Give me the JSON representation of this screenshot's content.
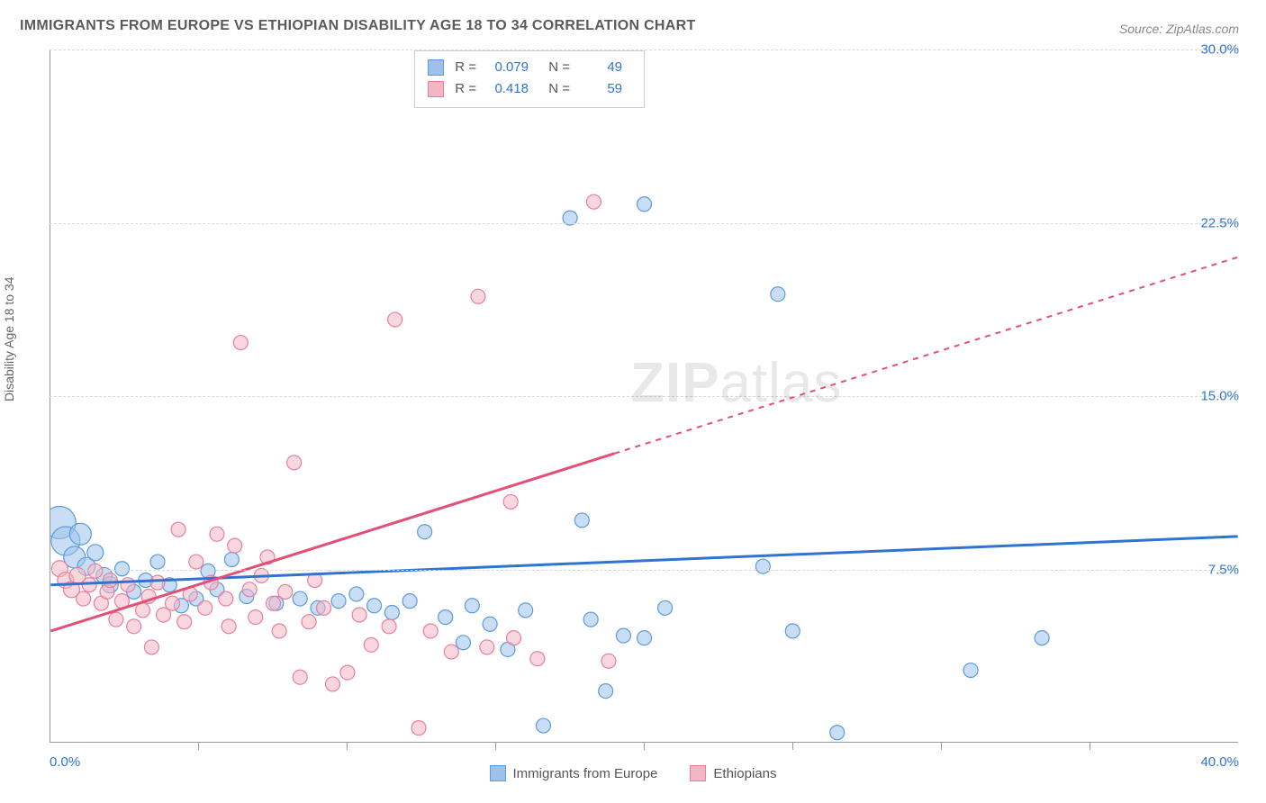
{
  "title": "IMMIGRANTS FROM EUROPE VS ETHIOPIAN DISABILITY AGE 18 TO 34 CORRELATION CHART",
  "source_label": "Source:",
  "source_name": "ZipAtlas.com",
  "y_axis_label": "Disability Age 18 to 34",
  "watermark_bold": "ZIP",
  "watermark_rest": "atlas",
  "chart": {
    "type": "scatter",
    "xlim": [
      0,
      40
    ],
    "ylim": [
      0,
      30
    ],
    "ytick_step": 7.5,
    "ytick_suffix": "%",
    "xtick_min_label": "0.0%",
    "xtick_max_label": "40.0%",
    "x_minor_ticks": [
      5,
      10,
      15,
      20,
      25,
      30,
      35
    ],
    "grid_color": "#d8d8d8",
    "background_color": "#ffffff",
    "axis_color": "#999999",
    "tick_label_color": "#2f74d0",
    "series": [
      {
        "key": "europe",
        "label": "Immigrants from Europe",
        "fill": "#9cc2eb",
        "fill_opacity": 0.55,
        "stroke": "#5a9bdc",
        "line_color": "#2f74d0",
        "line_dash_after_x": 40,
        "R": "0.079",
        "N": "49",
        "trend": {
          "x1": 0,
          "y1": 6.8,
          "x2": 40,
          "y2": 8.9
        },
        "points": [
          {
            "x": 0.3,
            "y": 9.5,
            "r": 18
          },
          {
            "x": 0.5,
            "y": 8.7,
            "r": 16
          },
          {
            "x": 0.8,
            "y": 8.0,
            "r": 12
          },
          {
            "x": 1.0,
            "y": 9.0,
            "r": 12
          },
          {
            "x": 1.2,
            "y": 7.6,
            "r": 10
          },
          {
            "x": 1.5,
            "y": 8.2,
            "r": 9
          },
          {
            "x": 1.8,
            "y": 7.2,
            "r": 9
          },
          {
            "x": 2.0,
            "y": 6.8,
            "r": 9
          },
          {
            "x": 2.4,
            "y": 7.5,
            "r": 8
          },
          {
            "x": 2.8,
            "y": 6.5,
            "r": 8
          },
          {
            "x": 3.2,
            "y": 7.0,
            "r": 8
          },
          {
            "x": 3.6,
            "y": 7.8,
            "r": 8
          },
          {
            "x": 4.0,
            "y": 6.8,
            "r": 8
          },
          {
            "x": 4.4,
            "y": 5.9,
            "r": 8
          },
          {
            "x": 4.9,
            "y": 6.2,
            "r": 8
          },
          {
            "x": 5.3,
            "y": 7.4,
            "r": 8
          },
          {
            "x": 5.6,
            "y": 6.6,
            "r": 8
          },
          {
            "x": 6.1,
            "y": 7.9,
            "r": 8
          },
          {
            "x": 6.6,
            "y": 6.3,
            "r": 8
          },
          {
            "x": 7.6,
            "y": 6.0,
            "r": 8
          },
          {
            "x": 8.4,
            "y": 6.2,
            "r": 8
          },
          {
            "x": 9.0,
            "y": 5.8,
            "r": 8
          },
          {
            "x": 9.7,
            "y": 6.1,
            "r": 8
          },
          {
            "x": 10.3,
            "y": 6.4,
            "r": 8
          },
          {
            "x": 10.9,
            "y": 5.9,
            "r": 8
          },
          {
            "x": 11.5,
            "y": 5.6,
            "r": 8
          },
          {
            "x": 12.1,
            "y": 6.1,
            "r": 8
          },
          {
            "x": 12.6,
            "y": 9.1,
            "r": 8
          },
          {
            "x": 13.3,
            "y": 5.4,
            "r": 8
          },
          {
            "x": 13.9,
            "y": 4.3,
            "r": 8
          },
          {
            "x": 14.2,
            "y": 5.9,
            "r": 8
          },
          {
            "x": 14.8,
            "y": 5.1,
            "r": 8
          },
          {
            "x": 15.4,
            "y": 4.0,
            "r": 8
          },
          {
            "x": 16.0,
            "y": 5.7,
            "r": 8
          },
          {
            "x": 16.6,
            "y": 0.7,
            "r": 8
          },
          {
            "x": 17.5,
            "y": 22.7,
            "r": 8
          },
          {
            "x": 17.9,
            "y": 9.6,
            "r": 8
          },
          {
            "x": 18.2,
            "y": 5.3,
            "r": 8
          },
          {
            "x": 18.7,
            "y": 2.2,
            "r": 8
          },
          {
            "x": 19.3,
            "y": 4.6,
            "r": 8
          },
          {
            "x": 20.0,
            "y": 23.3,
            "r": 8
          },
          {
            "x": 20.0,
            "y": 4.5,
            "r": 8
          },
          {
            "x": 20.7,
            "y": 5.8,
            "r": 8
          },
          {
            "x": 24.5,
            "y": 19.4,
            "r": 8
          },
          {
            "x": 24.0,
            "y": 7.6,
            "r": 8
          },
          {
            "x": 25.0,
            "y": 4.8,
            "r": 8
          },
          {
            "x": 26.5,
            "y": 0.4,
            "r": 8
          },
          {
            "x": 31.0,
            "y": 3.1,
            "r": 8
          },
          {
            "x": 33.4,
            "y": 4.5,
            "r": 8
          }
        ]
      },
      {
        "key": "ethiopians",
        "label": "Ethiopians",
        "fill": "#f4b6c5",
        "fill_opacity": 0.55,
        "stroke": "#e87f9e",
        "line_color": "#e24f77",
        "line_dash_after_x": 19,
        "R": "0.418",
        "N": "59",
        "trend": {
          "x1": 0,
          "y1": 4.8,
          "x2": 40,
          "y2": 21.0
        },
        "points": [
          {
            "x": 0.3,
            "y": 7.5,
            "r": 9
          },
          {
            "x": 0.5,
            "y": 7.0,
            "r": 9
          },
          {
            "x": 0.7,
            "y": 6.6,
            "r": 9
          },
          {
            "x": 0.9,
            "y": 7.2,
            "r": 9
          },
          {
            "x": 1.1,
            "y": 6.2,
            "r": 8
          },
          {
            "x": 1.3,
            "y": 6.8,
            "r": 8
          },
          {
            "x": 1.5,
            "y": 7.4,
            "r": 8
          },
          {
            "x": 1.7,
            "y": 6.0,
            "r": 8
          },
          {
            "x": 1.9,
            "y": 6.5,
            "r": 8
          },
          {
            "x": 2.0,
            "y": 7.0,
            "r": 8
          },
          {
            "x": 2.2,
            "y": 5.3,
            "r": 8
          },
          {
            "x": 2.4,
            "y": 6.1,
            "r": 8
          },
          {
            "x": 2.6,
            "y": 6.8,
            "r": 8
          },
          {
            "x": 2.8,
            "y": 5.0,
            "r": 8
          },
          {
            "x": 3.1,
            "y": 5.7,
            "r": 8
          },
          {
            "x": 3.3,
            "y": 6.3,
            "r": 8
          },
          {
            "x": 3.4,
            "y": 4.1,
            "r": 8
          },
          {
            "x": 3.6,
            "y": 6.9,
            "r": 8
          },
          {
            "x": 3.8,
            "y": 5.5,
            "r": 8
          },
          {
            "x": 4.1,
            "y": 6.0,
            "r": 8
          },
          {
            "x": 4.3,
            "y": 9.2,
            "r": 8
          },
          {
            "x": 4.5,
            "y": 5.2,
            "r": 8
          },
          {
            "x": 4.7,
            "y": 6.4,
            "r": 8
          },
          {
            "x": 4.9,
            "y": 7.8,
            "r": 8
          },
          {
            "x": 5.2,
            "y": 5.8,
            "r": 8
          },
          {
            "x": 5.4,
            "y": 6.9,
            "r": 8
          },
          {
            "x": 5.6,
            "y": 9.0,
            "r": 8
          },
          {
            "x": 5.9,
            "y": 6.2,
            "r": 8
          },
          {
            "x": 6.0,
            "y": 5.0,
            "r": 8
          },
          {
            "x": 6.2,
            "y": 8.5,
            "r": 8
          },
          {
            "x": 6.4,
            "y": 17.3,
            "r": 8
          },
          {
            "x": 6.7,
            "y": 6.6,
            "r": 8
          },
          {
            "x": 6.9,
            "y": 5.4,
            "r": 8
          },
          {
            "x": 7.1,
            "y": 7.2,
            "r": 8
          },
          {
            "x": 7.3,
            "y": 8.0,
            "r": 8
          },
          {
            "x": 7.5,
            "y": 6.0,
            "r": 8
          },
          {
            "x": 7.7,
            "y": 4.8,
            "r": 8
          },
          {
            "x": 7.9,
            "y": 6.5,
            "r": 8
          },
          {
            "x": 8.2,
            "y": 12.1,
            "r": 8
          },
          {
            "x": 8.4,
            "y": 2.8,
            "r": 8
          },
          {
            "x": 8.7,
            "y": 5.2,
            "r": 8
          },
          {
            "x": 8.9,
            "y": 7.0,
            "r": 8
          },
          {
            "x": 9.2,
            "y": 5.8,
            "r": 8
          },
          {
            "x": 9.5,
            "y": 2.5,
            "r": 8
          },
          {
            "x": 10.0,
            "y": 3.0,
            "r": 8
          },
          {
            "x": 10.4,
            "y": 5.5,
            "r": 8
          },
          {
            "x": 10.8,
            "y": 4.2,
            "r": 8
          },
          {
            "x": 11.4,
            "y": 5.0,
            "r": 8
          },
          {
            "x": 11.6,
            "y": 18.3,
            "r": 8
          },
          {
            "x": 12.4,
            "y": 0.6,
            "r": 8
          },
          {
            "x": 12.8,
            "y": 4.8,
            "r": 8
          },
          {
            "x": 13.5,
            "y": 3.9,
            "r": 8
          },
          {
            "x": 14.4,
            "y": 19.3,
            "r": 8
          },
          {
            "x": 14.7,
            "y": 4.1,
            "r": 8
          },
          {
            "x": 15.5,
            "y": 10.4,
            "r": 8
          },
          {
            "x": 15.6,
            "y": 4.5,
            "r": 8
          },
          {
            "x": 16.4,
            "y": 3.6,
            "r": 8
          },
          {
            "x": 18.3,
            "y": 23.4,
            "r": 8
          },
          {
            "x": 18.8,
            "y": 3.5,
            "r": 8
          }
        ]
      }
    ]
  },
  "stats_box": {
    "R_label": "R =",
    "N_label": "N ="
  }
}
